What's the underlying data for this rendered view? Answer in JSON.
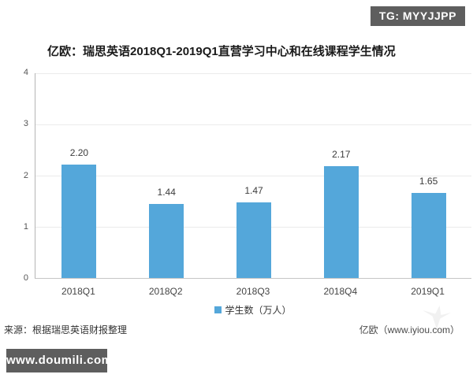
{
  "badges": {
    "top_right": {
      "label": "TG: MYYJJPP",
      "bg": "#5e5e5e",
      "fg": "#ffffff"
    },
    "bottom_left": {
      "label": "www.doumili.com",
      "bg": "#5e5e5e",
      "fg": "#ffffff"
    }
  },
  "title": "亿欧：瑞思英语2018Q1-2019Q1直营学习中心和在线课程学生情况",
  "footer": {
    "source": "来源：根据瑞思英语财报整理",
    "credit": "亿欧（www.iyiou.com）"
  },
  "icons": {
    "legend_swatch": "square",
    "iyiou_watermark": "faint-bird-mark"
  },
  "chart_data": {
    "type": "bar",
    "title": "亿欧：瑞思英语2018Q1-2019Q1直营学习中心和在线课程学生情况",
    "categories": [
      "2018Q1",
      "2018Q2",
      "2018Q3",
      "2018Q4",
      "2019Q1"
    ],
    "values": [
      2.2,
      1.44,
      1.47,
      2.17,
      1.65
    ],
    "value_labels": [
      "2.20",
      "1.44",
      "1.47",
      "2.17",
      "1.65"
    ],
    "legend": "学生数（万人）",
    "legend_position": "bottom",
    "bar_color": "#54a7da",
    "xlabel": "",
    "ylabel": "",
    "ylim": [
      0,
      4
    ],
    "yticks": [
      0,
      1,
      2,
      3,
      4
    ],
    "grid": true
  }
}
